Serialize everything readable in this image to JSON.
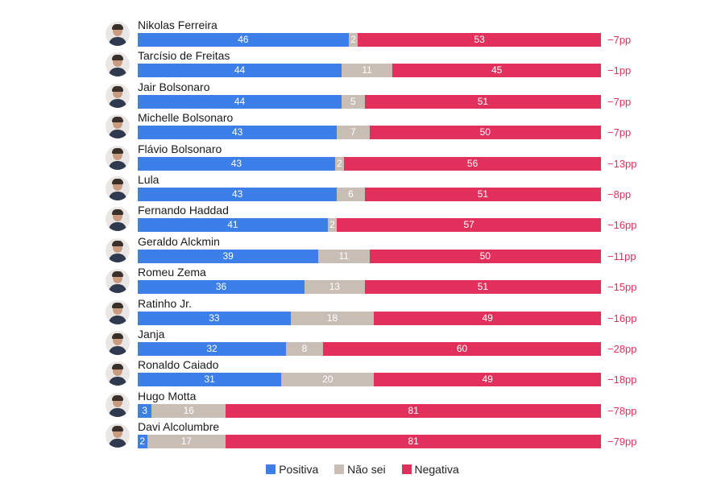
{
  "chart_data": {
    "type": "bar",
    "orientation": "horizontal",
    "stacked": true,
    "categories": [
      "Nikolas Ferreira",
      "Tarcísio de Freitas",
      "Jair Bolsonaro",
      "Michelle Bolsonaro",
      "Flávio Bolsonaro",
      "Lula",
      "Fernando Haddad",
      "Geraldo Alckmin",
      "Romeu Zema",
      "Ratinho Jr.",
      "Janja",
      "Ronaldo Caiado",
      "Hugo Motta",
      "Davi Alcolumbre"
    ],
    "series": [
      {
        "name": "Positiva",
        "color": "#3d7fe8",
        "values": [
          46,
          44,
          44,
          43,
          43,
          43,
          41,
          39,
          36,
          33,
          32,
          31,
          3,
          2
        ]
      },
      {
        "name": "Não sei",
        "color": "#c9beb6",
        "values": [
          2,
          11,
          5,
          7,
          2,
          6,
          2,
          11,
          13,
          18,
          8,
          20,
          16,
          17
        ]
      },
      {
        "name": "Negativa",
        "color": "#e1305c",
        "values": [
          53,
          45,
          51,
          50,
          56,
          51,
          57,
          50,
          51,
          49,
          60,
          49,
          81,
          81
        ]
      }
    ],
    "net_labels": [
      "−7pp",
      "−1pp",
      "−7pp",
      "−7pp",
      "−13pp",
      "−8pp",
      "−16pp",
      "−11pp",
      "−15pp",
      "−16pp",
      "−28pp",
      "−18pp",
      "−78pp",
      "−79pp"
    ],
    "net_color": "#e1305c",
    "legend_position": "bottom-center",
    "grid": false
  }
}
